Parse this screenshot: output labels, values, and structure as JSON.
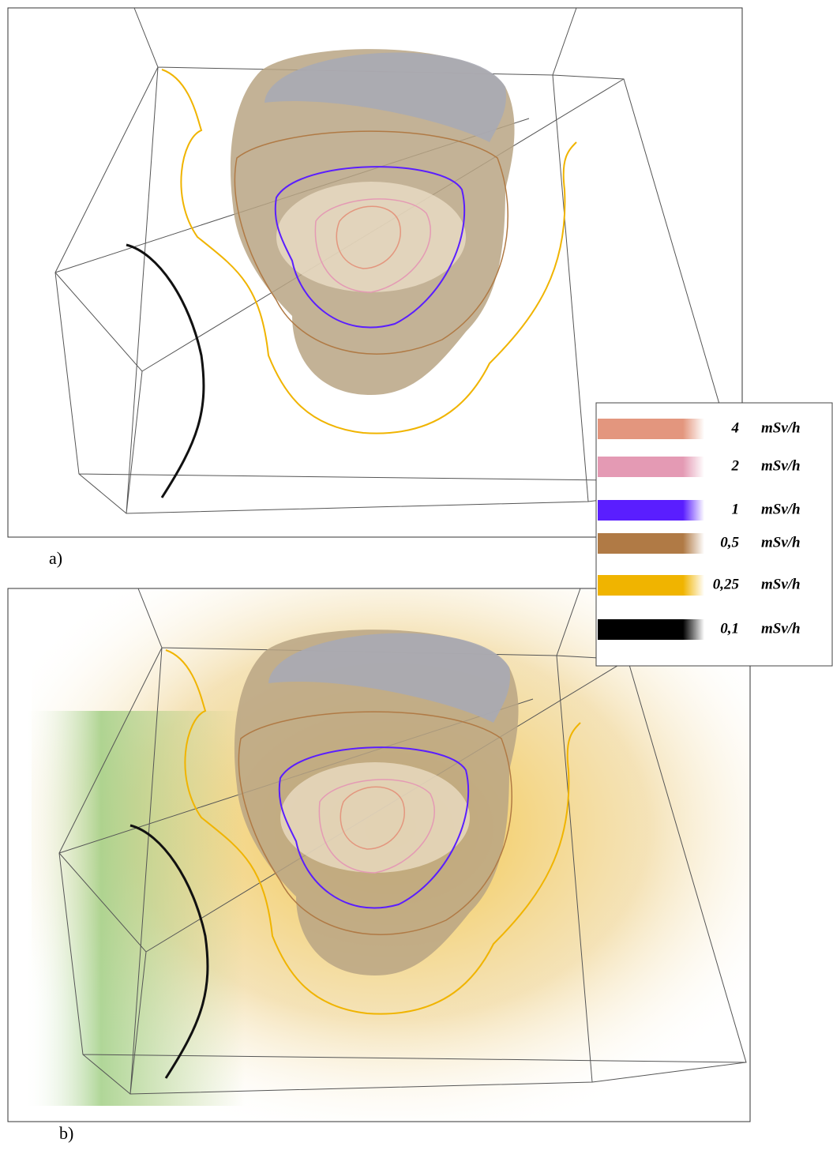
{
  "panels": [
    {
      "label": "a)"
    },
    {
      "label": "b)"
    }
  ],
  "legend": {
    "items": [
      {
        "value": "4",
        "unit": "mSv/h",
        "color": "#e3967e"
      },
      {
        "value": "2",
        "unit": "mSv/h",
        "color": "#e49ab4"
      },
      {
        "value": "1",
        "unit": "mSv/h",
        "color": "#5a1eff"
      },
      {
        "value": "0,5",
        "unit": "mSv/h",
        "color": "#b07a45"
      },
      {
        "value": "0,25",
        "unit": "mSv/h",
        "color": "#f0b400"
      },
      {
        "value": "0,1",
        "unit": "mSv/h",
        "color": "#000000"
      }
    ]
  }
}
